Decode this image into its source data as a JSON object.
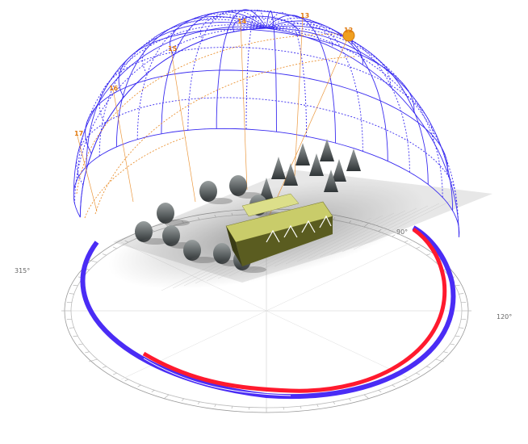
{
  "scene": {
    "hour_labels": [
      "17",
      "16",
      "15",
      "14",
      "13",
      "12"
    ],
    "compass_labels": [
      "315°",
      "120°",
      "90°"
    ],
    "colors": {
      "dome_grid": "#3a2cf0",
      "sun_path": "#e8861c",
      "sun": "#f0a020",
      "ring_red": "#ff1a2e",
      "ring_blue": "#4a2cf5",
      "building_roof": "#c9cc6a",
      "building_wall": "#5a5c20"
    },
    "icons": [
      "sun-icon",
      "tree-icon",
      "building-icon"
    ]
  }
}
